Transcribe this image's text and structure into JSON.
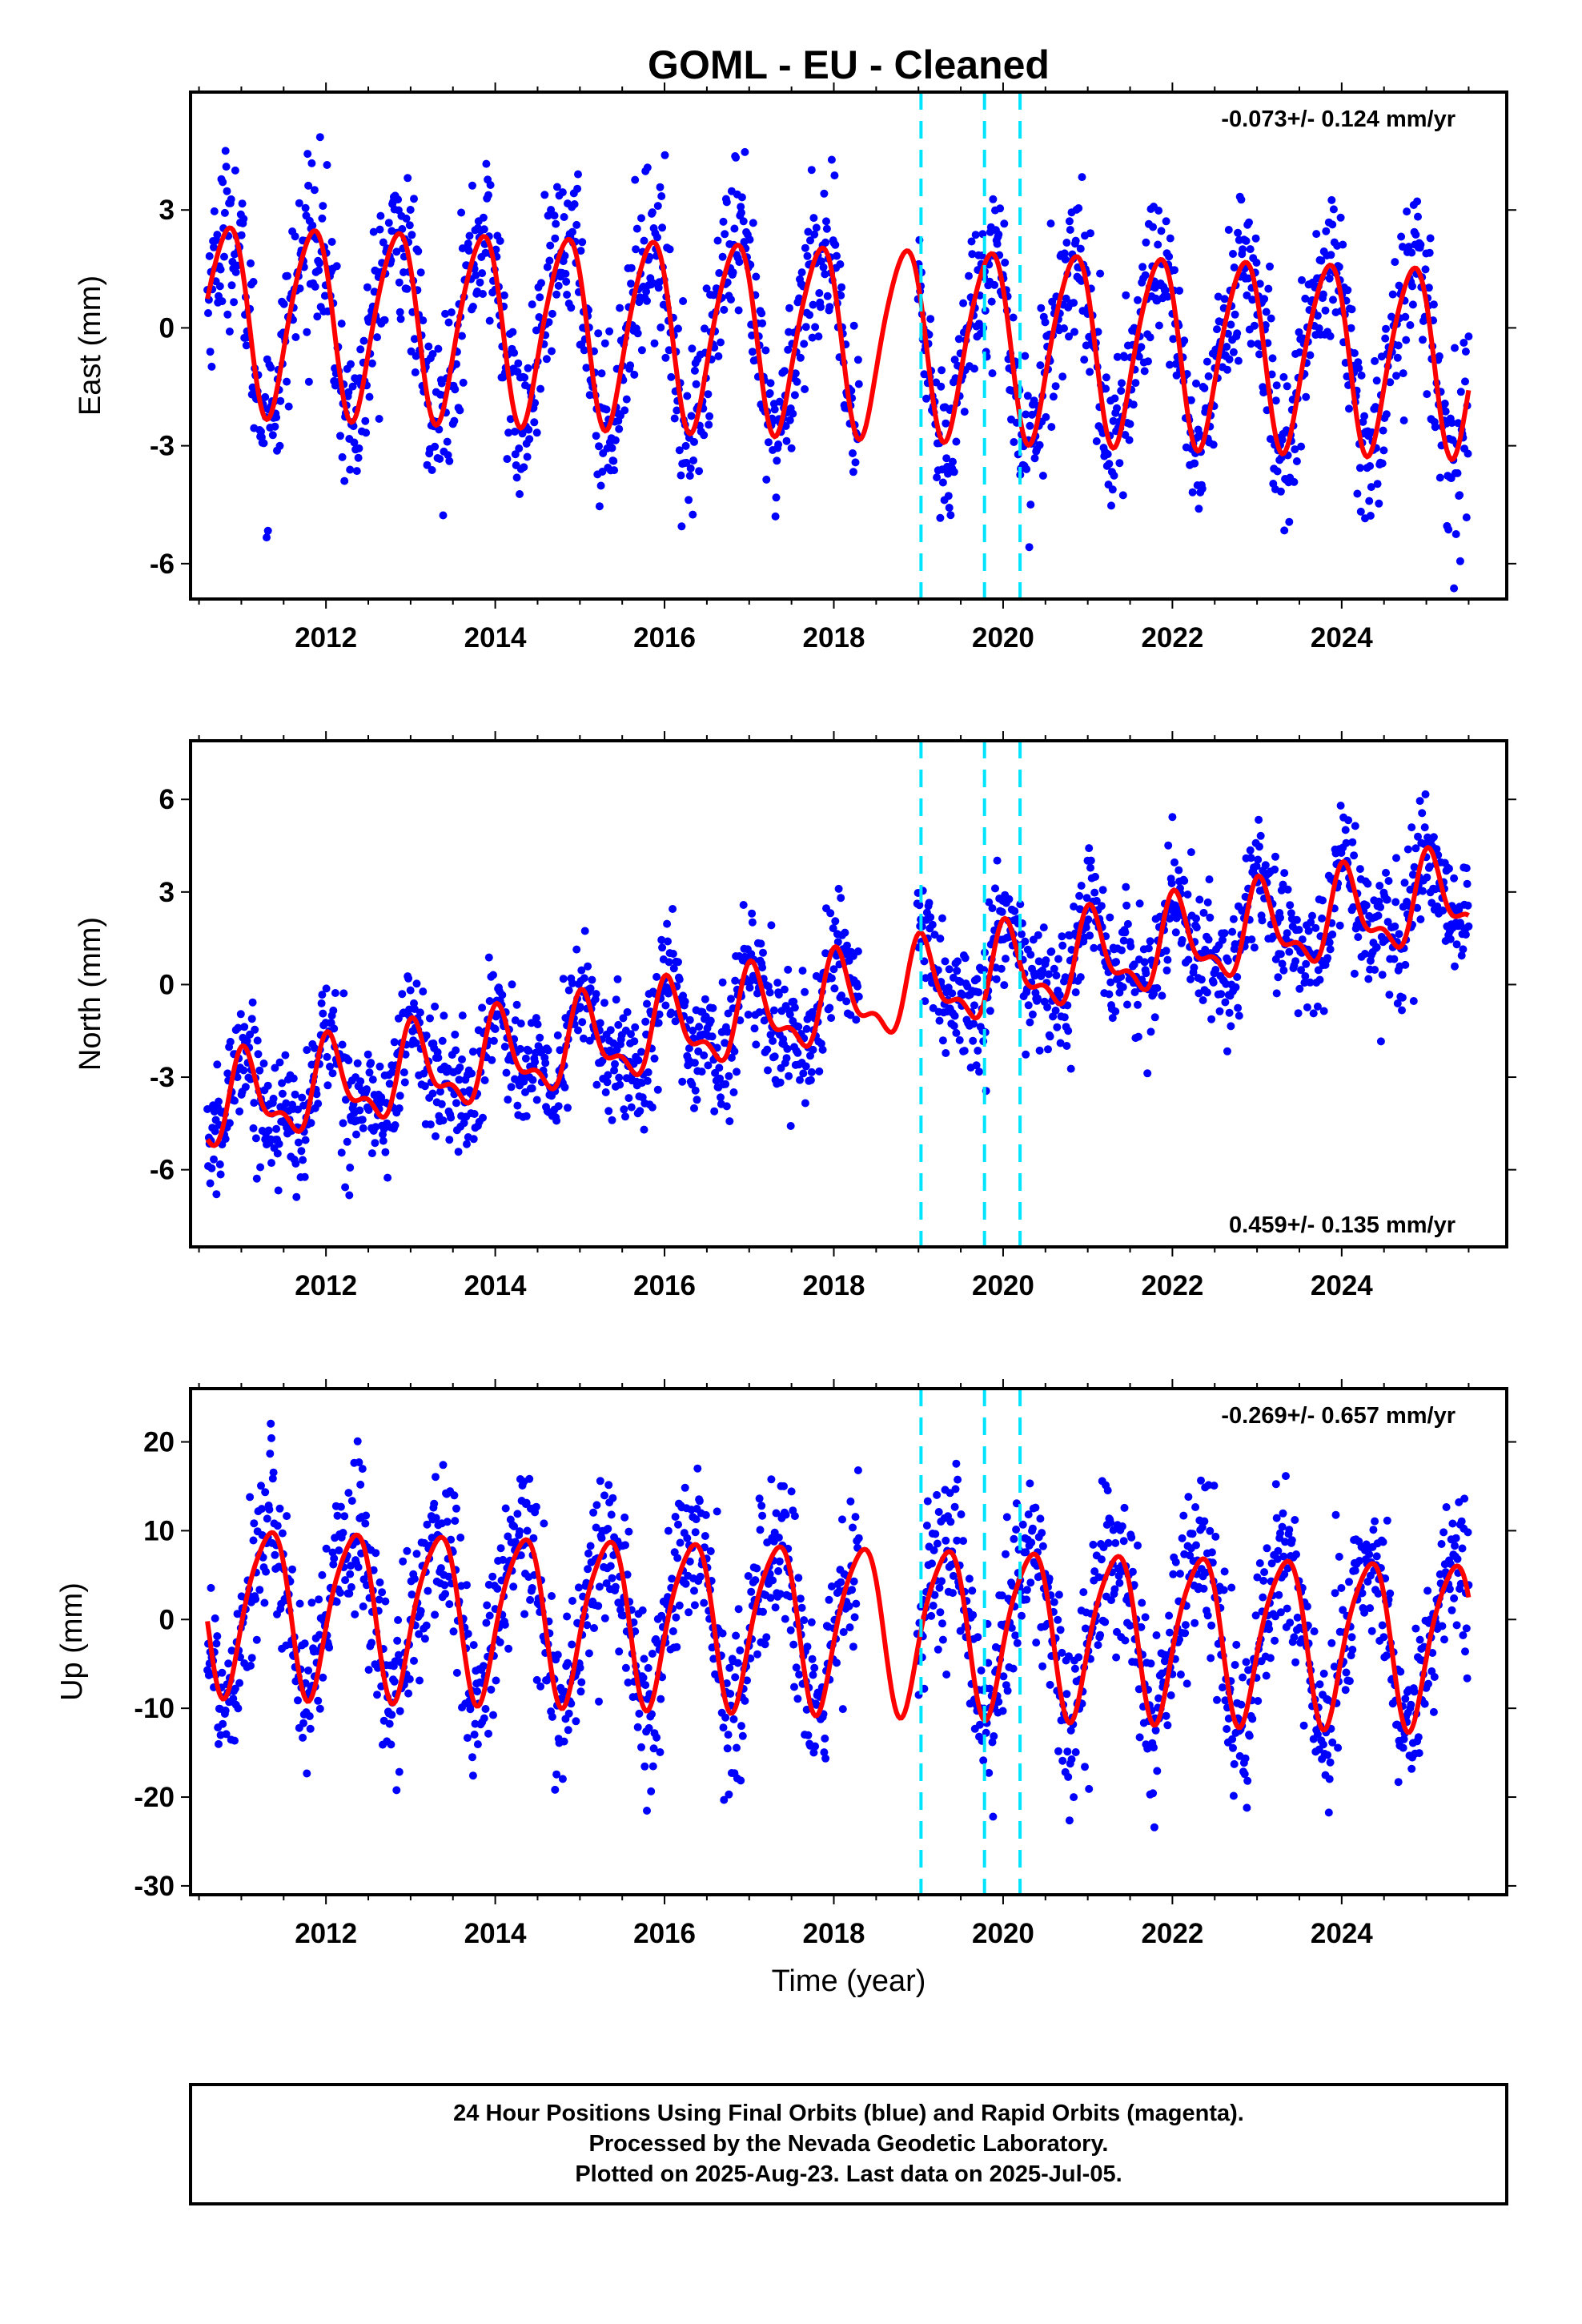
{
  "title": "GOML  - EU - Cleaned",
  "colors": {
    "points": "#0000ff",
    "fit": "#ff0000",
    "events": "#00e5ff",
    "frame": "#000000"
  },
  "footer": {
    "line1": "24 Hour Positions Using Final Orbits (blue) and Rapid Orbits (magenta).",
    "line2": "Processed by the Nevada Geodetic Laboratory.",
    "line3": "Plotted on 2025-Aug-23. Last data on 2025-Jul-05."
  },
  "chart_data": [
    {
      "type": "scatter",
      "name": "east",
      "ylabel": "East (mm)",
      "xlabel": "",
      "rate_text": "-0.073+/- 0.124 mm/yr",
      "rate_position": "top-right",
      "xlim": [
        2010.4,
        2025.95
      ],
      "ylim": [
        -6.9,
        6.0
      ],
      "xticks": [
        2012,
        2014,
        2016,
        2018,
        2020,
        2022,
        2024
      ],
      "xtick_labels": [
        "2012",
        "2014",
        "2016",
        "2018",
        "2020",
        "2022",
        "2024"
      ],
      "yticks": [
        -6,
        -3,
        0,
        3
      ],
      "ytick_labels": [
        "-6",
        "-3",
        "0",
        "3"
      ],
      "data_range": [
        2010.6,
        2025.5
      ],
      "events": [
        2019.03,
        2019.78,
        2020.2
      ],
      "model": {
        "trend_mm_per_yr": -0.073,
        "offset_mm": 0.3,
        "annual_cos": 1.1,
        "annual_sin": -2.1,
        "semiannual_amp": 0.3,
        "noise_sd": 1.05
      },
      "series": [
        {
          "name": "daily positions",
          "kind": "points"
        },
        {
          "name": "model fit",
          "kind": "line"
        }
      ]
    },
    {
      "type": "scatter",
      "name": "north",
      "ylabel": "North (mm)",
      "xlabel": "",
      "rate_text": "0.459+/- 0.135 mm/yr",
      "rate_position": "bottom-right",
      "xlim": [
        2010.4,
        2025.95
      ],
      "ylim": [
        -8.5,
        7.9
      ],
      "xticks": [
        2012,
        2014,
        2016,
        2018,
        2020,
        2022,
        2024
      ],
      "xtick_labels": [
        "2012",
        "2014",
        "2016",
        "2018",
        "2020",
        "2022",
        "2024"
      ],
      "yticks": [
        -6,
        -3,
        0,
        3,
        6
      ],
      "ytick_labels": [
        "-6",
        "-3",
        "0",
        "3",
        "6"
      ],
      "data_range": [
        2010.6,
        2025.5
      ],
      "events": [
        2019.03,
        2019.78,
        2020.2
      ],
      "model": {
        "trend_mm_per_yr": 0.459,
        "offset_mm": -4.0,
        "annual_cos": 1.2,
        "annual_sin": 0.4,
        "semiannual_amp": 0.6,
        "noise_sd": 1.0
      },
      "series": [
        {
          "name": "daily positions",
          "kind": "points"
        },
        {
          "name": "model fit",
          "kind": "line"
        }
      ]
    },
    {
      "type": "scatter",
      "name": "up",
      "ylabel": "Up (mm)",
      "xlabel": "Time (year)",
      "rate_text": "-0.269+/- 0.657 mm/yr",
      "rate_position": "top-right",
      "xlim": [
        2010.4,
        2025.95
      ],
      "ylim": [
        -31,
        26
      ],
      "xticks": [
        2012,
        2014,
        2016,
        2018,
        2020,
        2022,
        2024
      ],
      "xtick_labels": [
        "2012",
        "2014",
        "2016",
        "2018",
        "2020",
        "2022",
        "2024"
      ],
      "yticks": [
        -30,
        -20,
        -10,
        0,
        10,
        20
      ],
      "ytick_labels": [
        "-30",
        "-20",
        "-10",
        "0",
        "10",
        "20"
      ],
      "data_range": [
        2010.6,
        2025.5
      ],
      "events": [
        2019.03,
        2019.78,
        2020.2
      ],
      "model": {
        "trend_mm_per_yr": -0.269,
        "offset_mm": 1.5,
        "annual_cos": -3.5,
        "annual_sin": 8.5,
        "semiannual_amp": 1.5,
        "noise_sd": 4.8
      },
      "series": [
        {
          "name": "daily positions",
          "kind": "points"
        },
        {
          "name": "model fit",
          "kind": "line"
        }
      ]
    }
  ]
}
